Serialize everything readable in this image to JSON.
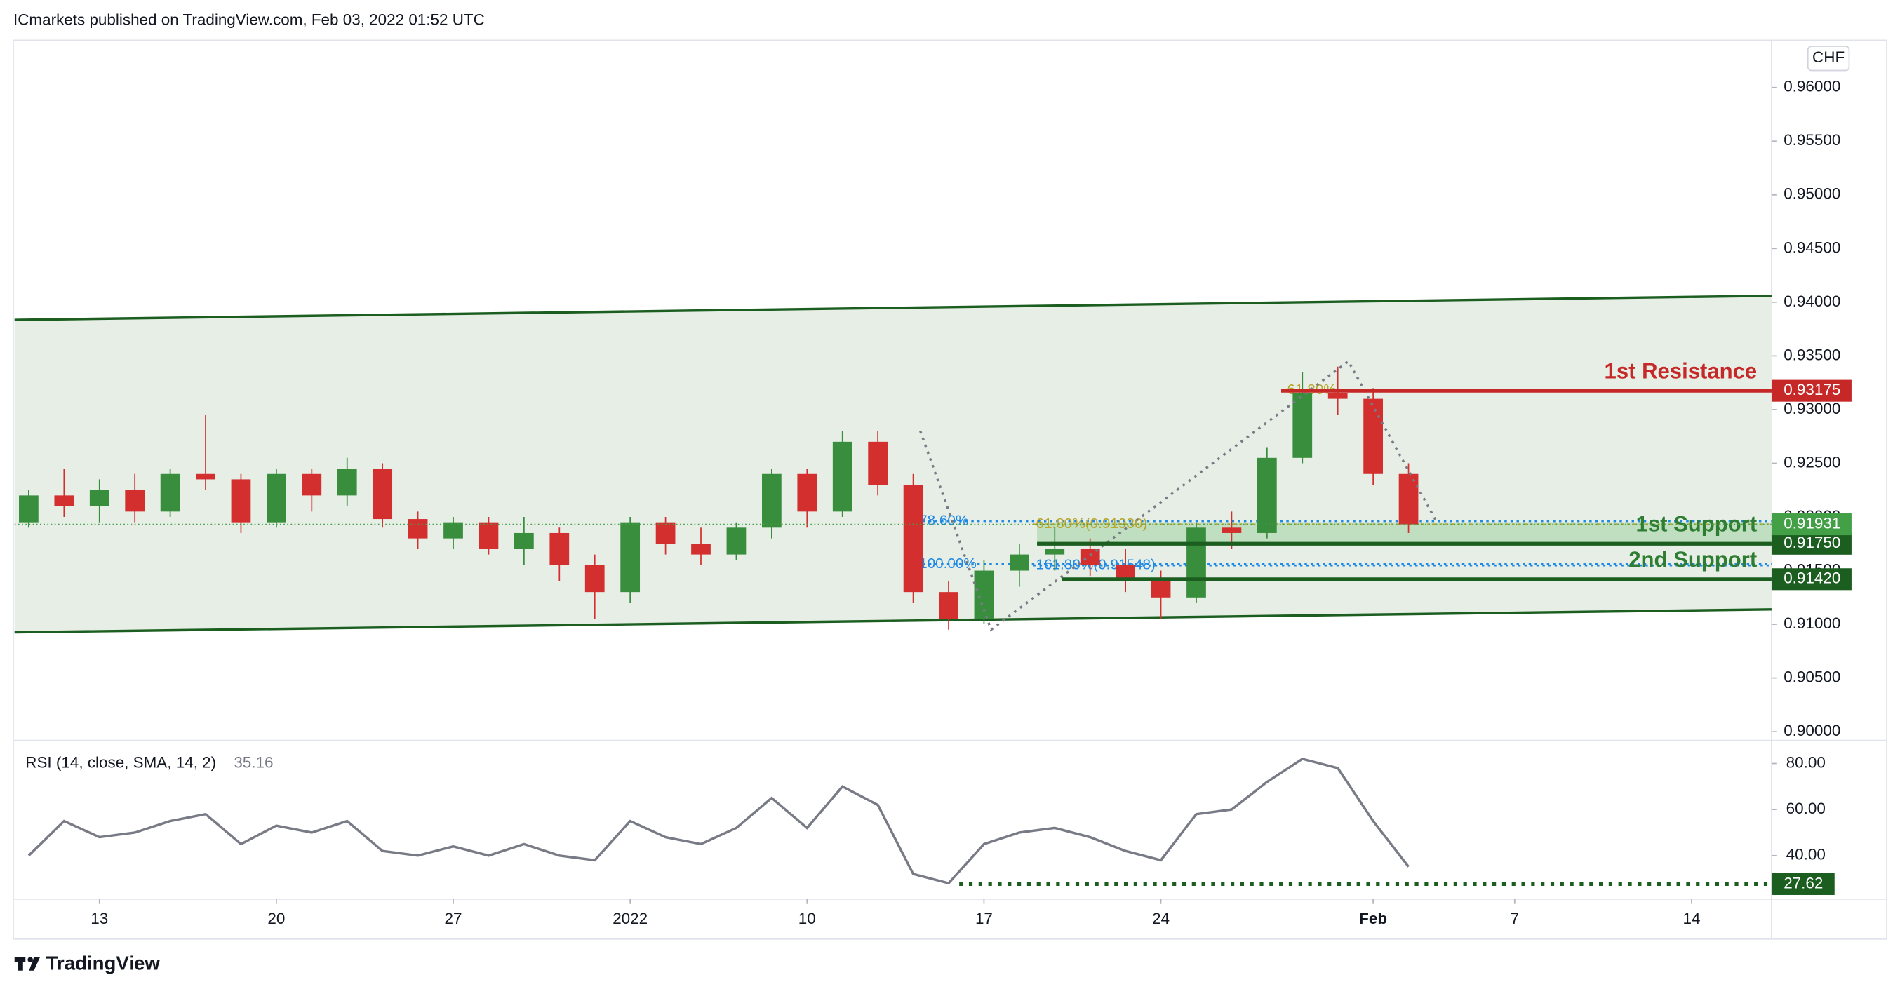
{
  "header": "ICmarkets published on TradingView.com, Feb 03, 2022 01:52 UTC",
  "footer": "TradingView",
  "chart_data": [
    {
      "type": "candlestick",
      "currency": "CHF",
      "up_color": "#388e3c",
      "down_color": "#d32f2f",
      "x": [
        -2,
        -1,
        0,
        1,
        2,
        3,
        4,
        5,
        6,
        7,
        8,
        9,
        10,
        11,
        12,
        13,
        14,
        15,
        16,
        17,
        18,
        19,
        20,
        21,
        22,
        23,
        24,
        25,
        26,
        27,
        28,
        29,
        30,
        31,
        32,
        33,
        34,
        35,
        36,
        37
      ],
      "open": [
        0.9195,
        0.922,
        0.921,
        0.9225,
        0.9205,
        0.924,
        0.9235,
        0.9195,
        0.924,
        0.922,
        0.9245,
        0.9198,
        0.918,
        0.9195,
        0.917,
        0.9185,
        0.9155,
        0.913,
        0.9195,
        0.9175,
        0.9165,
        0.919,
        0.924,
        0.9205,
        0.927,
        0.923,
        0.913,
        0.9105,
        0.915,
        0.9165,
        0.917,
        0.9155,
        0.914,
        0.9125,
        0.919,
        0.9185,
        0.9255,
        0.9315,
        0.931,
        0.924
      ],
      "high": [
        0.9225,
        0.9245,
        0.9235,
        0.924,
        0.9245,
        0.9295,
        0.924,
        0.9245,
        0.9245,
        0.9255,
        0.925,
        0.9205,
        0.92,
        0.92,
        0.92,
        0.919,
        0.9165,
        0.92,
        0.92,
        0.919,
        0.9195,
        0.9245,
        0.9245,
        0.928,
        0.928,
        0.924,
        0.914,
        0.916,
        0.9175,
        0.919,
        0.918,
        0.917,
        0.915,
        0.9195,
        0.9205,
        0.9265,
        0.9335,
        0.934,
        0.932,
        0.925
      ],
      "low": [
        0.919,
        0.92,
        0.9195,
        0.9195,
        0.92,
        0.9225,
        0.9185,
        0.919,
        0.9205,
        0.921,
        0.919,
        0.917,
        0.917,
        0.9165,
        0.9155,
        0.914,
        0.9105,
        0.912,
        0.9165,
        0.9155,
        0.916,
        0.918,
        0.919,
        0.92,
        0.922,
        0.912,
        0.9095,
        0.91,
        0.9135,
        0.915,
        0.9145,
        0.913,
        0.9105,
        0.912,
        0.917,
        0.918,
        0.925,
        0.9295,
        0.923,
        0.9185
      ],
      "close": [
        0.922,
        0.921,
        0.9225,
        0.9205,
        0.924,
        0.9235,
        0.9195,
        0.924,
        0.922,
        0.9245,
        0.9198,
        0.918,
        0.9195,
        0.917,
        0.9185,
        0.9155,
        0.913,
        0.9195,
        0.9175,
        0.9165,
        0.919,
        0.924,
        0.9205,
        0.927,
        0.923,
        0.913,
        0.9105,
        0.915,
        0.9165,
        0.917,
        0.9155,
        0.914,
        0.9125,
        0.919,
        0.9185,
        0.9255,
        0.9315,
        0.931,
        0.924,
        0.91931
      ],
      "xlim": [
        -2.4,
        47.26
      ],
      "xticks": [
        {
          "value": 0,
          "label": "13"
        },
        {
          "value": 5,
          "label": "20"
        },
        {
          "value": 10,
          "label": "27"
        },
        {
          "value": 15,
          "label": "2022"
        },
        {
          "value": 20,
          "label": "10"
        },
        {
          "value": 25,
          "label": "17"
        },
        {
          "value": 30,
          "label": "24"
        },
        {
          "value": 36,
          "label": "Feb"
        },
        {
          "value": 40,
          "label": "7"
        },
        {
          "value": 45,
          "label": "14"
        }
      ],
      "ylim": [
        0.8993,
        0.9644
      ],
      "yticks": [
        {
          "value": 0.9,
          "label": "0.90000"
        },
        {
          "value": 0.905,
          "label": "0.90500"
        },
        {
          "value": 0.91,
          "label": "0.91000"
        },
        {
          "value": 0.915,
          "label": "0.91500"
        },
        {
          "value": 0.92,
          "label": "0.92000"
        },
        {
          "value": 0.925,
          "label": "0.92500"
        },
        {
          "value": 0.93,
          "label": "0.93000"
        },
        {
          "value": 0.935,
          "label": "0.93500"
        },
        {
          "value": 0.94,
          "label": "0.94000"
        },
        {
          "value": 0.945,
          "label": "0.94500"
        },
        {
          "value": 0.95,
          "label": "0.95000"
        },
        {
          "value": 0.955,
          "label": "0.95500"
        },
        {
          "value": 0.96,
          "label": "0.96000"
        }
      ],
      "channel": {
        "fill": "#e6eee6",
        "color": "#1b5e20",
        "upper": [
          [
            -2.4,
            0.93835
          ],
          [
            47.26,
            0.9406
          ]
        ],
        "lower": [
          [
            -2.4,
            0.90925
          ],
          [
            47.26,
            0.91139
          ]
        ]
      },
      "last_price": {
        "value": 0.91931,
        "label": "0.91931",
        "color": "#43a047"
      },
      "levels": [
        {
          "name": "1st Resistance",
          "price": {
            "value": 0.93175,
            "label": "0.93175"
          },
          "from": 33.4,
          "color": "#c62828"
        },
        {
          "name": "1st Support",
          "price": {
            "value": 0.9175,
            "label": "0.91750"
          },
          "zone_top": 0.9195,
          "from": 26.5,
          "color": "#1b5e20",
          "zone_color": "#a5d6a7"
        },
        {
          "name": "2nd Support",
          "price": {
            "value": 0.9142,
            "label": "0.91420"
          },
          "from": 27.2,
          "color": "#1b5e20"
        }
      ],
      "fibs": [
        {
          "label": "78.60%",
          "price": 0.9196,
          "from": 23.1,
          "color": "#1e88e5"
        },
        {
          "label": "100.00%",
          "price": 0.9156,
          "from": 23.1,
          "color": "#1e88e5"
        },
        {
          "label": "61.80%(0.91930)",
          "price": 0.9193,
          "from": 26.4,
          "color": "#b8a52a"
        },
        {
          "label": "161.80%(0.91548)",
          "price": 0.91548,
          "from": 26.4,
          "color": "#1e88e5"
        },
        {
          "label": "61.80%",
          "price": 0.9318,
          "from": 33.5,
          "color": "#b8a52a"
        }
      ],
      "pattern": {
        "color": "#787b86",
        "points": [
          [
            23.2,
            0.928
          ],
          [
            25.2,
            0.9095
          ],
          [
            35.3,
            0.9345
          ],
          [
            37.8,
            0.9195
          ]
        ]
      }
    },
    {
      "type": "line",
      "title": "RSI (14, close, SMA, 14, 2)",
      "value_label": "35.16",
      "color": "#787b86",
      "values": [
        40,
        55,
        48,
        50,
        55,
        58,
        45,
        53,
        50,
        55,
        42,
        40,
        44,
        40,
        45,
        40,
        38,
        55,
        48,
        45,
        52,
        65,
        52,
        70,
        62,
        32,
        28,
        45,
        50,
        52,
        48,
        42,
        38,
        58,
        60,
        72,
        82,
        78,
        55,
        35.16
      ],
      "ylim": [
        21.1,
        89.5
      ],
      "yticks": [
        {
          "value": 40,
          "label": "40.00"
        },
        {
          "value": 60,
          "label": "60.00"
        },
        {
          "value": 80,
          "label": "80.00"
        }
      ],
      "level": {
        "value": 27.62,
        "from": 24.3,
        "color": "#1b5e20"
      }
    }
  ]
}
